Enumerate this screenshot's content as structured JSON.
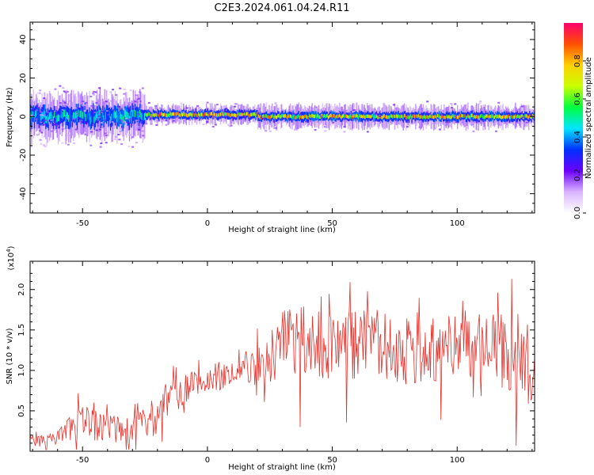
{
  "title": "C2E3.2024.061.04.24.R11",
  "colors": {
    "snr_line": "#e8302a",
    "axes": "#000000",
    "background": "#ffffff"
  },
  "chart_data": [
    {
      "type": "heatmap",
      "xlabel": "Height of straight line (km)",
      "ylabel": "Frequency (Hz)",
      "xlim": [
        -71,
        131
      ],
      "ylim": [
        -50,
        49
      ],
      "xticks": [
        -50,
        0,
        50,
        100
      ],
      "xtick_labels": [
        "-50",
        "0",
        "50",
        "100"
      ],
      "yticks": [
        -40,
        -20,
        0,
        20,
        40
      ],
      "ytick_labels": [
        "-40",
        "-20",
        "0",
        "20",
        "40"
      ],
      "colorbar": {
        "label": "Normalized spectral amplitude",
        "range": [
          0,
          1
        ],
        "ticks": [
          0.0,
          0.2,
          0.4,
          0.6,
          0.8
        ],
        "tick_labels": [
          "0.0",
          "0.2",
          "0.4",
          "0.6",
          "0.8"
        ],
        "colormap": [
          "#ffffff",
          "#d9b3ff",
          "#6a00ff",
          "#0030ff",
          "#00e5ff",
          "#00ff40",
          "#c8ff00",
          "#ffd000",
          "#ff5000",
          "#ff0070"
        ]
      },
      "bands": [
        {
          "x_range": [
            -71,
            -25
          ],
          "freq_center": 0,
          "core_halfwidth": 4,
          "halo_halfwidth": 10,
          "peak": 0.55
        },
        {
          "x_range": [
            -25,
            20
          ],
          "freq_center": 1,
          "core_halfwidth": 2,
          "halo_halfwidth": 4,
          "peak": 0.95
        },
        {
          "x_range": [
            20,
            131
          ],
          "freq_center": 0,
          "core_halfwidth": 2,
          "halo_halfwidth": 5,
          "peak": 0.9
        }
      ]
    },
    {
      "type": "line",
      "xlabel": "Height of straight line (km)",
      "ylabel": "SNR (10 * v/v)",
      "y_multiplier": "(x10",
      "y_multiplier_exp": "4",
      "y_multiplier_close": ")",
      "xlim": [
        -71,
        131
      ],
      "ylim": [
        0,
        2.35
      ],
      "xticks": [
        -50,
        0,
        50,
        100
      ],
      "xtick_labels": [
        "-50",
        "0",
        "50",
        "100"
      ],
      "yticks": [
        0.5,
        1.0,
        1.5,
        2.0
      ],
      "ytick_labels": [
        "0.5",
        "1.0",
        "1.5",
        "2.0"
      ],
      "series": [
        {
          "x": [
            -71,
            -65,
            -60,
            -55,
            -50,
            -45,
            -40,
            -35,
            -30,
            -25,
            -20,
            -15,
            -10,
            -5,
            0,
            5,
            10,
            15,
            20,
            25,
            30,
            35,
            40,
            45,
            50,
            55,
            60,
            65,
            70,
            75,
            80,
            85,
            90,
            95,
            100,
            105,
            110,
            115,
            120,
            125,
            130
          ],
          "values": [
            0.15,
            0.12,
            0.15,
            0.3,
            0.35,
            0.32,
            0.3,
            0.28,
            0.3,
            0.35,
            0.45,
            0.65,
            0.75,
            0.85,
            0.9,
            0.9,
            1.0,
            1.05,
            1.05,
            1.15,
            1.25,
            1.3,
            1.3,
            1.3,
            1.3,
            1.3,
            1.28,
            1.3,
            1.3,
            1.25,
            1.25,
            1.28,
            1.28,
            1.25,
            1.3,
            1.3,
            1.3,
            1.25,
            1.2,
            1.15,
            1.1
          ],
          "spread": [
            0.08,
            0.08,
            0.1,
            0.2,
            0.22,
            0.2,
            0.18,
            0.18,
            0.18,
            0.2,
            0.25,
            0.25,
            0.2,
            0.18,
            0.15,
            0.15,
            0.15,
            0.2,
            0.25,
            0.35,
            0.5,
            0.5,
            0.5,
            0.45,
            0.45,
            0.45,
            0.45,
            0.45,
            0.45,
            0.45,
            0.45,
            0.45,
            0.45,
            0.45,
            0.45,
            0.45,
            0.45,
            0.45,
            0.5,
            0.55,
            0.55
          ]
        }
      ]
    }
  ]
}
